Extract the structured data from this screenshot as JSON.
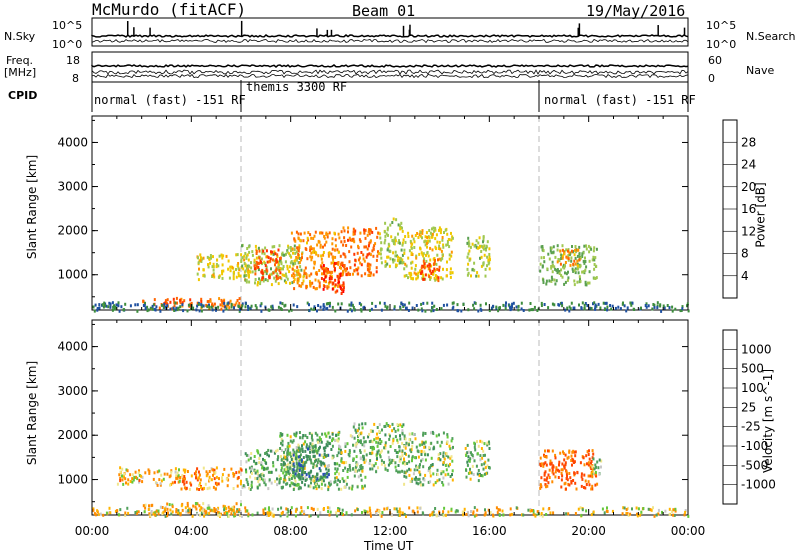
{
  "header": {
    "station": "McMurdo (fitACF)",
    "beam": "Beam 01",
    "date": "19/May/2016"
  },
  "summary_panel": {
    "left_labels": [
      "N.Sky",
      "Freq.",
      "[MHz]",
      "CPID"
    ],
    "right_labels": [
      "N.Search",
      "Nave"
    ],
    "nsky_ticks": [
      "10^5",
      "10^0"
    ],
    "nsearch_ticks": [
      "10^5",
      "10^0"
    ],
    "freq_ticks": [
      "18",
      "8"
    ],
    "nave_ticks": [
      "60",
      "0"
    ],
    "cpid_segments": [
      {
        "label": "normal (fast) -151 RF",
        "start_hour": 0,
        "end_hour": 6
      },
      {
        "label": "themis 3300 RF",
        "start_hour": 6,
        "end_hour": 18
      },
      {
        "label": "normal (fast) -151 RF",
        "start_hour": 18,
        "end_hour": 24
      }
    ]
  },
  "power_panel": {
    "ylabel": "Slant Range [km]",
    "yticks": [
      "4000",
      "3000",
      "2000",
      "1000"
    ],
    "colorbar_label": "Power [dB]",
    "colorbar_ticks": [
      "28",
      "24",
      "20",
      "16",
      "12",
      "8",
      "4"
    ],
    "colors": [
      "#0000ff",
      "#1e50a0",
      "#3c8c3c",
      "#5aa050",
      "#a0c850",
      "#f0c800",
      "#ff9600",
      "#ff6400",
      "#ff3200",
      "#ff0000"
    ]
  },
  "velocity_panel": {
    "ylabel": "Slant Range [km]",
    "yticks": [
      "4000",
      "3000",
      "2000",
      "1000"
    ],
    "colorbar_label": "Velocity [m s^-1]",
    "colorbar_ticks": [
      "1000",
      "500",
      "100",
      "25",
      "-25",
      "-100",
      "-500",
      "-1000"
    ],
    "colors": [
      "#1e3ca0",
      "#2850b4",
      "#3c8c5a",
      "#50a05a",
      "#64c83c",
      "#c8c8c8",
      "#f0e68c",
      "#ffb400",
      "#ff8c00",
      "#ff4600",
      "#ff0000"
    ]
  },
  "xaxis": {
    "label": "Time UT",
    "ticks": [
      "00:00",
      "04:00",
      "08:00",
      "12:00",
      "16:00",
      "20:00",
      "00:00"
    ]
  },
  "chart_data": [
    {
      "type": "heatmap",
      "title": "Power [dB]",
      "xlabel": "Time UT",
      "ylabel": "Slant Range [km]",
      "x_range": [
        0,
        24
      ],
      "ylim": [
        200,
        4600
      ],
      "clim": [
        0,
        30
      ],
      "blobs": [
        {
          "t0": 2.0,
          "t1": 6.0,
          "r0": 250,
          "r1": 500,
          "v": 22
        },
        {
          "t0": 4.2,
          "t1": 6.3,
          "r0": 900,
          "r1": 1500,
          "v": 16
        },
        {
          "t0": 6.0,
          "t1": 8.5,
          "r0": 800,
          "r1": 1700,
          "v": 14
        },
        {
          "t0": 6.5,
          "t1": 7.6,
          "r0": 900,
          "r1": 1600,
          "v": 24
        },
        {
          "t0": 8.0,
          "t1": 10.0,
          "r0": 700,
          "r1": 2000,
          "v": 20
        },
        {
          "t0": 9.2,
          "t1": 10.2,
          "r0": 600,
          "r1": 1300,
          "v": 26
        },
        {
          "t0": 10.0,
          "t1": 11.5,
          "r0": 1000,
          "r1": 2100,
          "v": 22
        },
        {
          "t0": 11.5,
          "t1": 12.5,
          "r0": 1200,
          "r1": 2300,
          "v": 14
        },
        {
          "t0": 12.5,
          "t1": 14.5,
          "r0": 900,
          "r1": 2100,
          "v": 16
        },
        {
          "t0": 13.2,
          "t1": 14.0,
          "r0": 900,
          "r1": 1400,
          "v": 24
        },
        {
          "t0": 15.0,
          "t1": 16.0,
          "r0": 1000,
          "r1": 1900,
          "v": 14
        },
        {
          "t0": 18.0,
          "t1": 20.3,
          "r0": 800,
          "r1": 1700,
          "v": 12
        },
        {
          "t0": 18.7,
          "t1": 19.6,
          "r0": 1200,
          "r1": 1600,
          "v": 20
        },
        {
          "t0": 0.0,
          "t1": 24.0,
          "r0": 200,
          "r1": 400,
          "v": 6
        }
      ]
    },
    {
      "type": "heatmap",
      "title": "Velocity [m s^-1]",
      "xlabel": "Time UT",
      "ylabel": "Slant Range [km]",
      "x_range": [
        0,
        24
      ],
      "ylim": [
        200,
        4600
      ],
      "clim": [
        -1000,
        1000
      ],
      "blobs": [
        {
          "t0": 1.0,
          "t1": 3.5,
          "r0": 900,
          "r1": 1300,
          "v": -80
        },
        {
          "t0": 3.5,
          "t1": 6.0,
          "r0": 800,
          "r1": 1300,
          "v": -150
        },
        {
          "t0": 2.0,
          "t1": 6.0,
          "r0": 250,
          "r1": 500,
          "v": -60
        },
        {
          "t0": 6.0,
          "t1": 8.5,
          "r0": 800,
          "r1": 1700,
          "v": 150
        },
        {
          "t0": 7.5,
          "t1": 11.0,
          "r0": 800,
          "r1": 2100,
          "v": 120
        },
        {
          "t0": 8.0,
          "t1": 9.5,
          "r0": 1000,
          "r1": 1800,
          "v": 400
        },
        {
          "t0": 10.5,
          "t1": 12.5,
          "r0": 1200,
          "r1": 2300,
          "v": 110
        },
        {
          "t0": 12.5,
          "t1": 14.5,
          "r0": 900,
          "r1": 2100,
          "v": 100
        },
        {
          "t0": 15.0,
          "t1": 16.0,
          "r0": 1000,
          "r1": 1900,
          "v": 110
        },
        {
          "t0": 18.0,
          "t1": 20.3,
          "r0": 800,
          "r1": 1700,
          "v": -300
        },
        {
          "t0": 20.0,
          "t1": 20.5,
          "r0": 1100,
          "r1": 1500,
          "v": 100
        },
        {
          "t0": 0.0,
          "t1": 24.0,
          "r0": 200,
          "r1": 400,
          "v": -30
        }
      ]
    }
  ]
}
